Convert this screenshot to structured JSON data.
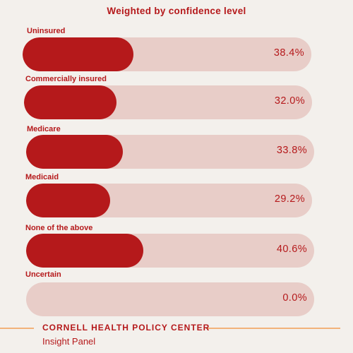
{
  "chart_data": {
    "type": "bar",
    "orientation": "horizontal",
    "title": "Weighted by confidence level",
    "categories": [
      "Uninsured",
      "Commercially insured",
      "Medicare",
      "Medicaid",
      "None of the above",
      "Uncertain"
    ],
    "values": [
      38.4,
      32.0,
      33.8,
      29.2,
      40.6,
      0.0
    ],
    "value_labels": [
      "38.4%",
      "32.0%",
      "33.8%",
      "29.2%",
      "40.6%",
      "0.0%"
    ],
    "xlim": [
      0,
      100
    ],
    "unit": "%",
    "grid": false,
    "colors": {
      "fill": "#b5191b",
      "track": "#e8cdc8",
      "text": "#b5191b",
      "background": "#f3f0ec"
    }
  },
  "footer": {
    "org": "CORNELL HEALTH POLICY CENTER",
    "subtitle": "Insight Panel",
    "accent_color": "#f2b27a"
  }
}
